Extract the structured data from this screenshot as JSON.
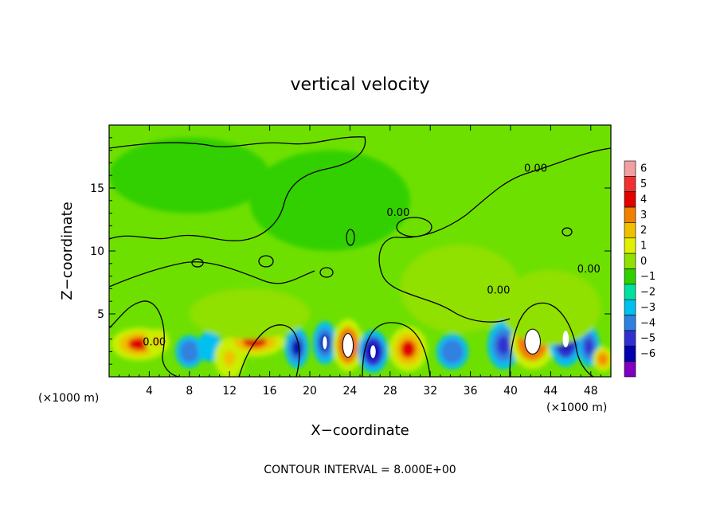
{
  "chart_data": {
    "type": "heatmap",
    "title": "vertical velocity",
    "xlabel": "X−coordinate",
    "ylabel": "Z−coordinate",
    "x_unit_left": "(×1000 m)",
    "x_unit_right": "(×1000 m)",
    "footer": "CONTOUR INTERVAL = 8.000E+00",
    "xlim": [
      0,
      50
    ],
    "ylim": [
      0,
      20
    ],
    "x_ticks": [
      4,
      8,
      12,
      16,
      20,
      24,
      28,
      32,
      36,
      40,
      44,
      48
    ],
    "x_tick_labels": [
      "4",
      "8",
      "12",
      "16",
      "20",
      "24",
      "28",
      "32",
      "36",
      "40",
      "44",
      "48"
    ],
    "y_ticks": [
      5,
      10,
      15
    ],
    "y_tick_labels": [
      "5",
      "10",
      "15"
    ],
    "contour_labels": [
      {
        "text": "0.00",
        "x": 4.5,
        "y": 2.5
      },
      {
        "text": "0.00",
        "x": 42.5,
        "y": 16.3
      },
      {
        "text": "0.00",
        "x": 28.8,
        "y": 12.8
      },
      {
        "text": "0.00",
        "x": 38.8,
        "y": 6.6
      },
      {
        "text": "0.00",
        "x": 47.8,
        "y": 8.3
      }
    ],
    "colorbar": {
      "levels": [
        "6",
        "5",
        "4",
        "3",
        "2",
        "1",
        "0",
        "−1",
        "−2",
        "−3",
        "−4",
        "−5",
        "−6"
      ],
      "colors": [
        "#f0a0a0",
        "#f03030",
        "#e00000",
        "#f08000",
        "#f0c000",
        "#e0f000",
        "#90e000",
        "#30d000",
        "#00e0a0",
        "#00c0f0",
        "#3080e0",
        "#3030d0",
        "#0000b0",
        "#8000c0"
      ]
    },
    "cells": [
      {
        "x": 3.0,
        "z": 2.6,
        "w": 2.8,
        "h": 1.3,
        "v": 4.5
      },
      {
        "x": 4.8,
        "z": 2.8,
        "w": 1.2,
        "h": 1.0,
        "v": 2.0
      },
      {
        "x": 8.0,
        "z": 2.0,
        "w": 1.4,
        "h": 1.3,
        "v": -3.0
      },
      {
        "x": 10.0,
        "z": 2.4,
        "w": 1.2,
        "h": 1.2,
        "v": -2.0
      },
      {
        "x": 12.0,
        "z": 1.5,
        "w": 1.5,
        "h": 1.6,
        "v": 2.0
      },
      {
        "x": 14.5,
        "z": 2.8,
        "w": 3.0,
        "h": 1.2,
        "v": 4.5
      },
      {
        "x": 18.7,
        "z": 2.3,
        "w": 1.2,
        "h": 1.6,
        "v": -4.2
      },
      {
        "x": 21.5,
        "z": 2.7,
        "w": 1.2,
        "h": 1.7,
        "v": -4.5
      },
      {
        "x": 23.8,
        "z": 2.5,
        "w": 1.5,
        "h": 2.1,
        "v": 5.5
      },
      {
        "x": 26.3,
        "z": 2.0,
        "w": 1.5,
        "h": 1.7,
        "v": -4.8
      },
      {
        "x": 29.8,
        "z": 2.2,
        "w": 1.9,
        "h": 1.8,
        "v": 4.2
      },
      {
        "x": 34.2,
        "z": 2.0,
        "w": 1.6,
        "h": 1.4,
        "v": -3.0
      },
      {
        "x": 39.3,
        "z": 2.5,
        "w": 1.6,
        "h": 1.9,
        "v": -3.2
      },
      {
        "x": 42.2,
        "z": 2.8,
        "w": 2.2,
        "h": 2.2,
        "v": 5.6
      },
      {
        "x": 45.5,
        "z": 3.0,
        "w": 1.7,
        "h": 2.2,
        "v": -4.6
      },
      {
        "x": 47.8,
        "z": 2.4,
        "w": 1.1,
        "h": 1.6,
        "v": -3.5
      },
      {
        "x": 49.2,
        "z": 1.4,
        "w": 1.0,
        "h": 1.0,
        "v": 3.5
      },
      {
        "x": 35.0,
        "z": 7.0,
        "w": 6.0,
        "h": 3.5,
        "v": 0.4
      },
      {
        "x": 44.0,
        "z": 5.5,
        "w": 5.0,
        "h": 3.0,
        "v": 0.6
      },
      {
        "x": 14.0,
        "z": 5.0,
        "w": 6.0,
        "h": 2.0,
        "v": 0.6
      },
      {
        "x": 22.0,
        "z": 14.0,
        "w": 8.0,
        "h": 4.0,
        "v": -0.3
      },
      {
        "x": 8.0,
        "z": 16.0,
        "w": 8.0,
        "h": 3.0,
        "v": 0.2
      }
    ]
  }
}
